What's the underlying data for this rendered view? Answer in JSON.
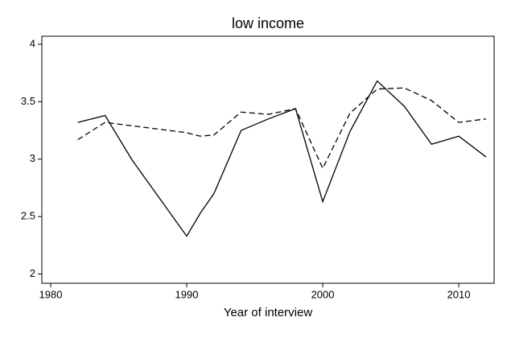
{
  "chart_data": {
    "type": "line",
    "title": "low income",
    "xlabel": "Year of interview",
    "x": [
      1982,
      1984,
      1986,
      1990,
      1991,
      1992,
      1994,
      1996,
      1998,
      2000,
      2002,
      2004,
      2006,
      2008,
      2010,
      2012
    ],
    "series": [
      {
        "color": "#000000",
        "dash": false,
        "values": [
          3.32,
          3.38,
          2.99,
          2.33,
          2.53,
          2.7,
          3.25,
          3.35,
          3.44,
          2.63,
          3.24,
          3.68,
          3.46,
          3.13,
          3.2,
          3.02
        ]
      },
      {
        "color": "#000000",
        "dash": true,
        "values": [
          3.17,
          3.32,
          3.29,
          3.23,
          3.2,
          3.21,
          3.41,
          3.39,
          3.44,
          2.92,
          3.4,
          3.61,
          3.62,
          3.51,
          3.32,
          3.35
        ]
      }
    ],
    "xlim": [
      1979.35,
      2012.6
    ],
    "xticks": [
      1980,
      1990,
      2000,
      2010
    ],
    "ylim": [
      1.92,
      4.07
    ],
    "yticks": [
      2,
      2.5,
      3,
      3.5,
      4
    ]
  }
}
